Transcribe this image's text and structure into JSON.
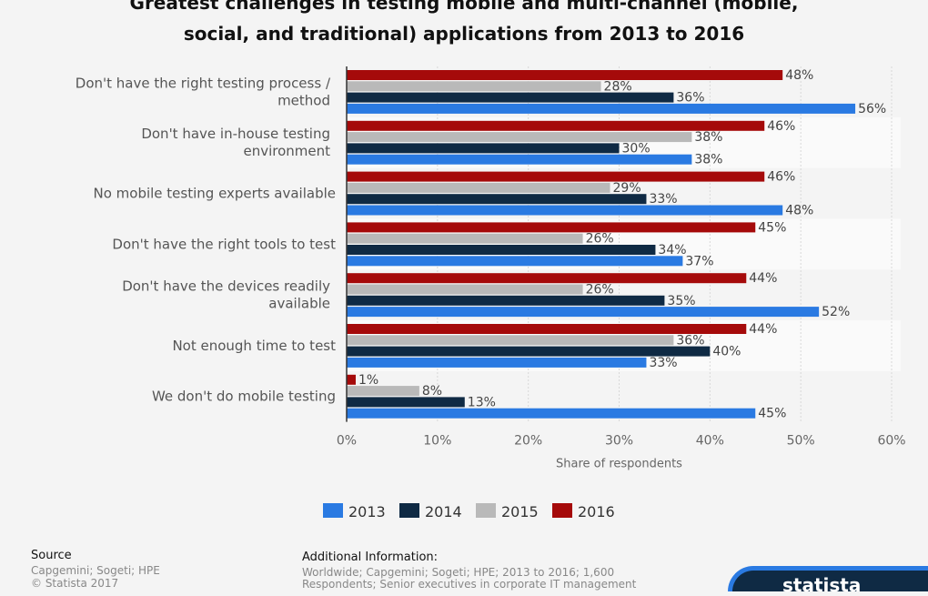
{
  "chart_data": {
    "type": "bar",
    "orientation": "horizontal",
    "title": "Greatest challenges in testing mobile and multi-channel (mobile, social, and traditional) applications from 2013 to 2016",
    "title_lines": [
      "Greatest challenges in testing mobile and multi-channel (mobile,",
      "social, and traditional) applications from 2013 to 2016"
    ],
    "categories": [
      [
        "Don't have the right testing process /",
        "method"
      ],
      [
        "Don't have in-house testing",
        "environment"
      ],
      [
        "No mobile testing experts available"
      ],
      [
        "Don't have the right tools to test"
      ],
      [
        "Don't have the devices readily",
        "available"
      ],
      [
        "Not enough time to test"
      ],
      [
        "We don't do mobile testing"
      ]
    ],
    "series": [
      {
        "name": "2016",
        "color": "#a50a0a",
        "values": [
          48,
          46,
          46,
          45,
          44,
          44,
          1
        ]
      },
      {
        "name": "2015",
        "color": "#b9b9b9",
        "values": [
          28,
          38,
          29,
          26,
          26,
          36,
          8
        ]
      },
      {
        "name": "2014",
        "color": "#0f2a44",
        "values": [
          36,
          30,
          33,
          34,
          35,
          40,
          13
        ]
      },
      {
        "name": "2013",
        "color": "#2a7ae2",
        "values": [
          56,
          38,
          48,
          37,
          52,
          33,
          45
        ]
      }
    ],
    "legend_order": [
      "2013",
      "2014",
      "2015",
      "2016"
    ],
    "xlabel": "Share of respondents",
    "xlim": [
      0,
      60
    ],
    "xticks": [
      "0%",
      "10%",
      "20%",
      "30%",
      "40%",
      "50%",
      "60%"
    ],
    "value_suffix": "%",
    "grid": true,
    "legend_position": "bottom"
  },
  "footer": {
    "source_label": "Source",
    "source_lines": [
      "Capgemini; Sogeti; HPE",
      "© Statista 2017"
    ],
    "additional_label": "Additional Information:",
    "additional_lines": [
      "Worldwide; Capgemini; Sogeti; HPE; 2013 to 2016; 1,600",
      "Respondents; Senior executives in corporate IT management"
    ],
    "logo_text": "statista"
  }
}
